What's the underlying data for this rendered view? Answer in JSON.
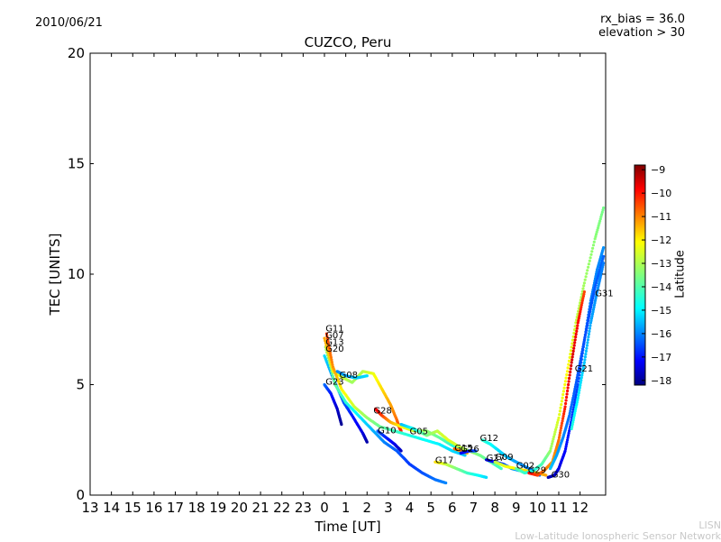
{
  "header": {
    "date": "2010/06/21",
    "rx_bias": "rx_bias = 36.0",
    "elevation": "elevation > 30"
  },
  "watermark": {
    "line1": "LISN",
    "line2": "Low-Latitude Ionospheric Sensor Network"
  },
  "colorbar": {
    "label": "Latitude",
    "ticks": [
      "−9",
      "−10",
      "−11",
      "−12",
      "−13",
      "−14",
      "−15",
      "−16",
      "−17",
      "−18"
    ],
    "range": [
      -18.2,
      -8.8
    ]
  },
  "chart_data": {
    "type": "scatter",
    "title": "CUZCO, Peru",
    "xlabel": "Time [UT]",
    "ylabel": "TEC [UNITS]",
    "xlim": [
      13,
      37.2
    ],
    "ylim": [
      0,
      20
    ],
    "grid": false,
    "xticks": [
      13,
      14,
      15,
      16,
      17,
      18,
      19,
      20,
      21,
      22,
      23,
      24,
      25,
      26,
      27,
      28,
      29,
      30,
      31,
      32,
      33,
      34,
      35,
      36
    ],
    "xticklabels": [
      "13",
      "14",
      "15",
      "16",
      "17",
      "18",
      "19",
      "20",
      "21",
      "22",
      "23",
      "0",
      "1",
      "2",
      "3",
      "4",
      "5",
      "6",
      "7",
      "8",
      "9",
      "10",
      "11",
      "12"
    ],
    "yticks": [
      0,
      5,
      10,
      15,
      20
    ],
    "yticklabels": [
      "0",
      "5",
      "10",
      "15",
      "20"
    ],
    "series": [
      {
        "name": "G23",
        "label_at": [
          24.05,
          5.0
        ],
        "points": [
          [
            24.0,
            5.0
          ],
          [
            24.3,
            4.6
          ],
          [
            24.6,
            3.9
          ],
          [
            24.8,
            3.2
          ]
        ],
        "lat": [
          -16.0,
          -16.8,
          -17.5,
          -18.0
        ]
      },
      {
        "name": "G20",
        "label_at": [
          24.05,
          6.5
        ],
        "points": [
          [
            24.0,
            6.3
          ],
          [
            24.4,
            5.3
          ],
          [
            24.9,
            4.2
          ],
          [
            25.3,
            3.6
          ],
          [
            25.8,
            2.8
          ],
          [
            26.0,
            2.4
          ]
        ],
        "lat": [
          -15.0,
          -15.6,
          -16.2,
          -16.8,
          -17.3,
          -17.8
        ]
      },
      {
        "name": "G13",
        "label_at": [
          24.05,
          6.8
        ],
        "points": [
          [
            24.05,
            6.7
          ],
          [
            24.5,
            5.0
          ],
          [
            25.0,
            4.2
          ],
          [
            25.6,
            3.6
          ],
          [
            26.2,
            3.0
          ],
          [
            26.8,
            2.4
          ],
          [
            27.4,
            2.0
          ],
          [
            28.0,
            1.4
          ],
          [
            28.6,
            1.0
          ],
          [
            29.2,
            0.7
          ],
          [
            29.7,
            0.55
          ]
        ],
        "lat": [
          -13.2,
          -13.8,
          -14.3,
          -14.8,
          -15.3,
          -15.8,
          -16.2,
          -16.5,
          -16.3,
          -16.0,
          -15.8
        ]
      },
      {
        "name": "G07",
        "label_at": [
          24.05,
          7.1
        ],
        "points": [
          [
            24.0,
            7.1
          ],
          [
            24.4,
            5.6
          ],
          [
            24.9,
            5.3
          ],
          [
            25.3,
            5.1
          ],
          [
            25.8,
            5.6
          ],
          [
            26.3,
            5.5
          ],
          [
            26.7,
            4.8
          ],
          [
            27.1,
            4.1
          ],
          [
            27.4,
            3.4
          ],
          [
            27.5,
            3.1
          ],
          [
            27.6,
            2.9
          ]
        ],
        "lat": [
          -11.5,
          -12.2,
          -12.8,
          -13.2,
          -13.0,
          -12.5,
          -12.0,
          -11.5,
          -11.0,
          -10.6,
          -10.3
        ]
      },
      {
        "name": "G11",
        "label_at": [
          24.05,
          7.4
        ],
        "points": [
          [
            24.1,
            7.3
          ],
          [
            24.4,
            5.8
          ],
          [
            24.8,
            4.8
          ],
          [
            25.4,
            4.0
          ],
          [
            26.0,
            3.5
          ],
          [
            26.6,
            3.1
          ],
          [
            27.3,
            2.9
          ],
          [
            28.0,
            2.7
          ],
          [
            28.7,
            2.5
          ],
          [
            29.4,
            2.3
          ],
          [
            30.0,
            2.0
          ],
          [
            30.6,
            1.8
          ]
        ],
        "lat": [
          -10.5,
          -11.3,
          -12.2,
          -12.8,
          -13.3,
          -13.7,
          -14.1,
          -14.4,
          -14.6,
          -14.8,
          -15.0,
          -15.2
        ]
      },
      {
        "name": "G08",
        "label_at": [
          24.7,
          5.3
        ],
        "points": [
          [
            24.6,
            5.6
          ],
          [
            25.0,
            5.4
          ],
          [
            25.5,
            5.3
          ],
          [
            26.0,
            5.4
          ]
        ],
        "lat": [
          -15.8,
          -15.5,
          -15.2,
          -15.0
        ]
      },
      {
        "name": "G28",
        "label_at": [
          26.3,
          3.7
        ],
        "points": [
          [
            26.4,
            3.9
          ],
          [
            26.7,
            3.6
          ],
          [
            27.1,
            3.3
          ],
          [
            27.6,
            3.1
          ],
          [
            28.2,
            2.9
          ],
          [
            28.8,
            2.9
          ],
          [
            29.4,
            2.6
          ],
          [
            29.9,
            2.3
          ],
          [
            30.3,
            2.1
          ]
        ],
        "lat": [
          -9.8,
          -10.5,
          -11.5,
          -12.3,
          -12.8,
          -13.3,
          -13.8,
          -14.2,
          -14.5
        ]
      },
      {
        "name": "G10",
        "label_at": [
          26.5,
          2.8
        ],
        "points": [
          [
            26.5,
            2.9
          ],
          [
            26.9,
            2.6
          ],
          [
            27.3,
            2.3
          ],
          [
            27.6,
            2.0
          ]
        ],
        "lat": [
          -16.2,
          -16.7,
          -17.2,
          -17.6
        ]
      },
      {
        "name": "G05",
        "label_at": [
          28.0,
          2.75
        ],
        "points": [
          [
            27.6,
            3.2
          ],
          [
            28.2,
            3.0
          ],
          [
            28.8,
            2.7
          ],
          [
            29.3,
            2.9
          ],
          [
            29.8,
            2.5
          ],
          [
            30.3,
            2.2
          ],
          [
            30.8,
            2.0
          ],
          [
            31.3,
            1.8
          ],
          [
            31.8,
            1.5
          ],
          [
            32.3,
            1.2
          ]
        ],
        "lat": [
          -15.3,
          -14.6,
          -13.6,
          -12.9,
          -12.6,
          -12.8,
          -13.2,
          -13.6,
          -13.9,
          -14.1
        ]
      },
      {
        "name": "G17",
        "label_at": [
          29.2,
          1.45
        ],
        "points": [
          [
            29.2,
            1.5
          ],
          [
            29.7,
            1.4
          ],
          [
            30.2,
            1.2
          ],
          [
            30.7,
            1.0
          ],
          [
            31.2,
            0.9
          ],
          [
            31.6,
            0.8
          ]
        ],
        "lat": [
          -12.0,
          -12.8,
          -13.5,
          -14.1,
          -14.6,
          -15.0
        ]
      },
      {
        "name": "G15",
        "label_at": [
          30.1,
          2.0
        ],
        "points": [
          [
            30.1,
            2.1
          ],
          [
            30.4,
            2.0
          ],
          [
            30.7,
            1.9
          ]
        ],
        "lat": [
          -10.8,
          -11.3,
          -11.6
        ]
      },
      {
        "name": "G26",
        "label_at": [
          30.4,
          1.95
        ],
        "points": [
          [
            30.4,
            1.9
          ],
          [
            30.8,
            2.0
          ],
          [
            31.1,
            2.0
          ]
        ],
        "lat": [
          -17.2,
          -16.8,
          -16.4
        ]
      },
      {
        "name": "G12",
        "label_at": [
          31.3,
          2.45
        ],
        "points": [
          [
            31.4,
            2.5
          ],
          [
            31.8,
            2.3
          ],
          [
            32.2,
            2.0
          ],
          [
            32.6,
            1.7
          ],
          [
            33.0,
            1.5
          ],
          [
            33.4,
            1.3
          ],
          [
            33.8,
            1.1
          ],
          [
            34.1,
            0.9
          ]
        ],
        "lat": [
          -14.2,
          -14.6,
          -15.0,
          -15.3,
          -15.5,
          -15.7,
          -15.9,
          -16.0
        ]
      },
      {
        "name": "G27",
        "label_at": [
          31.6,
          1.55
        ],
        "points": [
          [
            31.6,
            1.6
          ],
          [
            32.0,
            1.5
          ],
          [
            32.4,
            1.4
          ],
          [
            32.8,
            1.2
          ],
          [
            33.2,
            1.1
          ]
        ],
        "lat": [
          -17.5,
          -17.0,
          -16.4,
          -15.8,
          -15.3
        ]
      },
      {
        "name": "G09",
        "label_at": [
          32.0,
          1.6
        ],
        "points": [
          [
            32.0,
            1.5
          ],
          [
            32.5,
            1.3
          ],
          [
            33.0,
            1.2
          ],
          [
            33.5,
            1.1
          ],
          [
            34.0,
            1.0
          ],
          [
            34.4,
            0.9
          ]
        ],
        "lat": [
          -13.0,
          -12.5,
          -12.2,
          -12.0,
          -11.8,
          -11.5
        ]
      },
      {
        "name": "G02",
        "label_at": [
          33.0,
          1.2
        ],
        "points": [
          [
            33.0,
            1.2
          ],
          [
            33.4,
            1.0
          ],
          [
            33.8,
            1.1
          ],
          [
            34.2,
            1.4
          ],
          [
            34.6,
            2.0
          ],
          [
            35.0,
            3.5
          ],
          [
            35.4,
            5.6
          ],
          [
            35.8,
            7.8
          ],
          [
            36.2,
            9.6
          ],
          [
            36.7,
            11.6
          ],
          [
            37.1,
            13.0
          ]
        ],
        "lat": [
          -13.8,
          -14.2,
          -14.5,
          -14.0,
          -13.3,
          -12.6,
          -12.3,
          -12.8,
          -13.2,
          -13.4,
          -13.6
        ]
      },
      {
        "name": "G29",
        "label_at": [
          33.55,
          1.0
        ],
        "points": [
          [
            33.6,
            1.0
          ],
          [
            34.0,
            0.9
          ],
          [
            34.3,
            1.1
          ],
          [
            34.7,
            1.5
          ],
          [
            35.0,
            2.5
          ],
          [
            35.3,
            4.0
          ],
          [
            35.6,
            6.0
          ],
          [
            35.9,
            7.8
          ],
          [
            36.2,
            9.2
          ]
        ],
        "lat": [
          -10.0,
          -10.5,
          -11.0,
          -11.4,
          -11.0,
          -10.2,
          -9.6,
          -10.0,
          -10.6
        ]
      },
      {
        "name": "G30",
        "label_at": [
          34.65,
          0.8
        ],
        "points": [
          [
            34.5,
            0.8
          ],
          [
            34.8,
            0.9
          ],
          [
            35.0,
            1.2
          ],
          [
            35.3,
            2.0
          ],
          [
            35.6,
            3.4
          ],
          [
            35.9,
            5.0
          ],
          [
            36.2,
            7.0
          ],
          [
            36.5,
            8.8
          ],
          [
            36.8,
            10.2
          ],
          [
            37.1,
            11.2
          ]
        ],
        "lat": [
          -17.8,
          -17.6,
          -17.3,
          -17.0,
          -16.7,
          -16.4,
          -16.1,
          -15.9,
          -15.8,
          -15.7
        ]
      },
      {
        "name": "G21",
        "label_at": [
          35.75,
          5.6
        ],
        "points": [
          [
            34.6,
            1.2
          ],
          [
            34.9,
            1.8
          ],
          [
            35.2,
            2.6
          ],
          [
            35.5,
            3.6
          ],
          [
            35.8,
            5.0
          ],
          [
            36.1,
            6.5
          ],
          [
            36.4,
            8.0
          ],
          [
            36.7,
            9.4
          ],
          [
            37.1,
            10.8
          ]
        ],
        "lat": [
          -15.2,
          -15.5,
          -15.8,
          -16.0,
          -16.2,
          -16.3,
          -16.3,
          -16.2,
          -16.1
        ]
      },
      {
        "name": "G31",
        "label_at": [
          36.7,
          9.0
        ],
        "points": [
          [
            35.6,
            3.0
          ],
          [
            35.9,
            4.4
          ],
          [
            36.2,
            6.0
          ],
          [
            36.5,
            7.8
          ],
          [
            36.8,
            9.2
          ],
          [
            37.1,
            10.5
          ]
        ],
        "lat": [
          -14.4,
          -14.8,
          -15.2,
          -15.5,
          -15.7,
          -15.9
        ]
      }
    ]
  }
}
